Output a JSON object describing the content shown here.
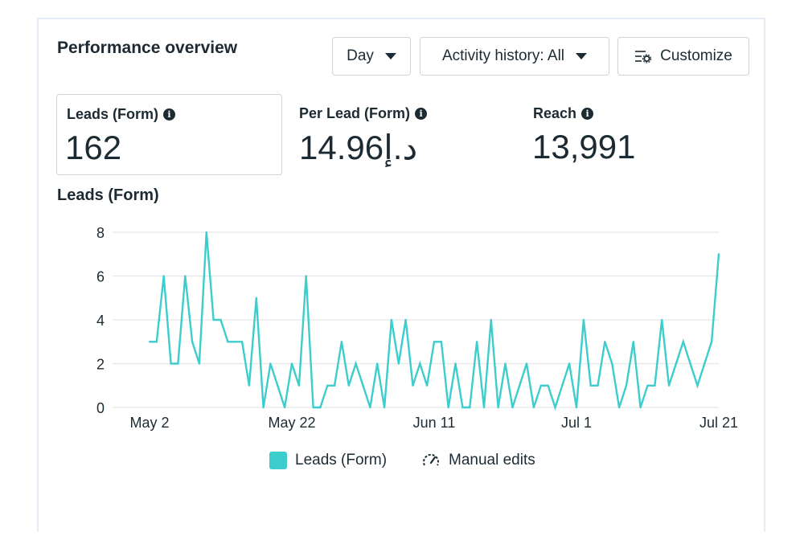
{
  "header": {
    "title": "Performance overview",
    "day_label": "Day",
    "activity_label": "Activity history: All",
    "customize_label": "Customize"
  },
  "metrics": [
    {
      "label": "Leads (Form)",
      "value": "162"
    },
    {
      "label": "Per Lead (Form)",
      "value": "14.96د.إ"
    },
    {
      "label": "Reach",
      "value": "13,991"
    }
  ],
  "chart_title": "Leads (Form)",
  "legend": {
    "series_label": "Leads (Form)",
    "edits_label": "Manual edits"
  },
  "colors": {
    "series": "#3dcdcc",
    "grid": "#e4e6eb",
    "text": "#1c2b33"
  },
  "icons": {
    "info": "info-icon",
    "customize": "sliders-gear-icon",
    "dropdown": "caret-down-icon",
    "edits": "gauge-pencil-icon"
  },
  "chart_data": {
    "type": "line",
    "title": "Leads (Form)",
    "xlabel": "",
    "ylabel": "",
    "ylim": [
      0,
      8
    ],
    "yticks": [
      "0",
      "2",
      "4",
      "6",
      "8"
    ],
    "xticks": [
      "May 2",
      "May 22",
      "Jun 11",
      "Jul 1",
      "Jul 21"
    ],
    "grid": true,
    "legend_position": "bottom",
    "series": [
      {
        "name": "Leads (Form)",
        "values": [
          3,
          3,
          6,
          2,
          2,
          6,
          3,
          2,
          8,
          4,
          4,
          3,
          3,
          3,
          1,
          5,
          0,
          2,
          1,
          0,
          2,
          1,
          6,
          0,
          0,
          1,
          1,
          3,
          1,
          2,
          1,
          0,
          2,
          0,
          4,
          2,
          4,
          1,
          2,
          1,
          3,
          3,
          0,
          2,
          0,
          0,
          3,
          0,
          4,
          0,
          2,
          0,
          1,
          2,
          0,
          1,
          1,
          0,
          1,
          2,
          0,
          4,
          1,
          1,
          3,
          2,
          0,
          1,
          3,
          0,
          1,
          1,
          4,
          1,
          2,
          3,
          2,
          1,
          2,
          3,
          7
        ]
      }
    ]
  }
}
